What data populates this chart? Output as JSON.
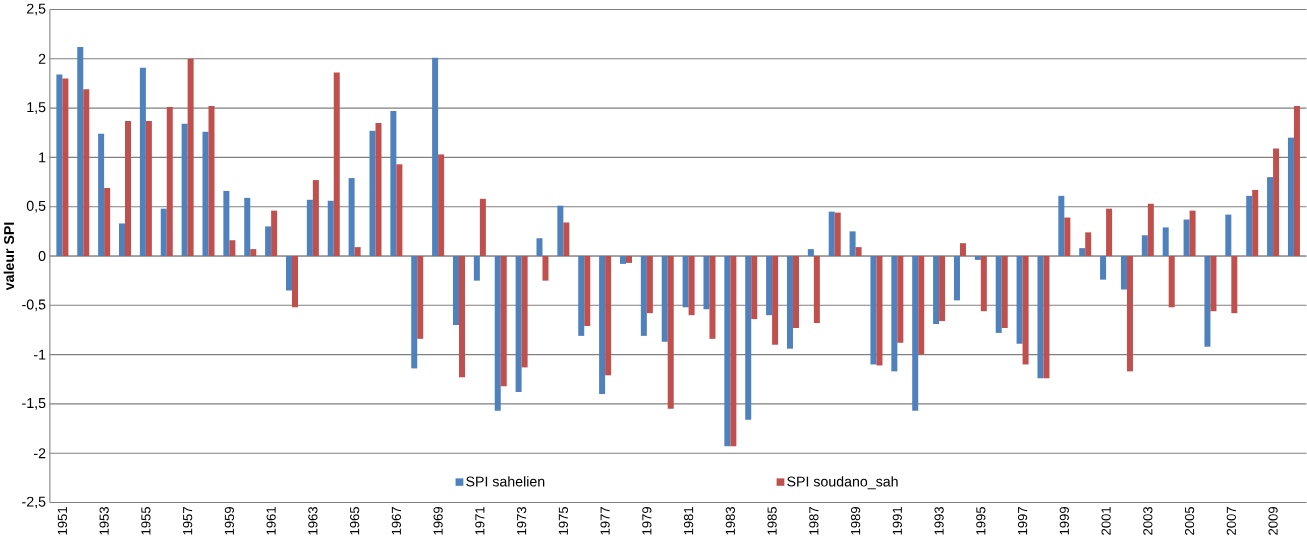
{
  "chart_data": {
    "type": "bar",
    "ylabel": "valeur SPI",
    "categories": [
      "1951",
      null,
      "1953",
      null,
      "1955",
      null,
      "1957",
      null,
      "1959",
      null,
      "1961",
      null,
      "1963",
      null,
      "1965",
      null,
      "1967",
      null,
      "1969",
      null,
      "1971",
      null,
      "1973",
      null,
      "1975",
      null,
      "1977",
      null,
      "1979",
      null,
      "1981",
      null,
      "1983",
      null,
      "1985",
      null,
      "1987",
      null,
      "1989",
      null,
      "1991",
      null,
      "1993",
      null,
      "1995",
      null,
      "1997",
      null,
      "1999",
      null,
      "2001",
      null,
      "2003",
      null,
      "2005",
      null,
      "2007",
      null,
      "2009",
      null
    ],
    "series": [
      {
        "name": "SPI sahelien",
        "color": "#4f81bd",
        "values": [
          1.84,
          2.12,
          1.24,
          0.33,
          1.91,
          0.48,
          1.34,
          1.26,
          0.66,
          0.59,
          0.3,
          -0.35,
          0.57,
          0.56,
          0.79,
          1.27,
          1.47,
          -1.14,
          2.01,
          -0.7,
          -0.25,
          -1.57,
          -1.38,
          0.18,
          0.51,
          -0.81,
          -1.4,
          -0.08,
          -0.81,
          -0.87,
          -0.52,
          -0.54,
          -1.93,
          -1.66,
          -0.6,
          -0.94,
          0.07,
          0.45,
          0.25,
          -1.1,
          -1.17,
          -1.57,
          -0.69,
          -0.45,
          -0.04,
          -0.78,
          -0.89,
          -1.24,
          0.61,
          0.08,
          -0.24,
          -0.34,
          0.21,
          0.29,
          0.37,
          -0.92,
          0.42,
          0.61,
          0.8,
          1.2
        ]
      },
      {
        "name": "SPI soudano_sah",
        "color": "#c0504d",
        "values": [
          1.8,
          1.69,
          0.69,
          1.37,
          1.37,
          1.51,
          2.0,
          1.52,
          0.16,
          0.07,
          0.46,
          -0.52,
          0.77,
          1.86,
          0.09,
          1.35,
          0.93,
          -0.84,
          1.03,
          -1.23,
          0.58,
          -1.32,
          -1.13,
          -0.25,
          0.34,
          -0.71,
          -1.21,
          -0.07,
          -0.58,
          -1.55,
          -0.6,
          -0.84,
          -1.93,
          -0.64,
          -0.9,
          -0.73,
          -0.68,
          0.44,
          0.09,
          -1.11,
          -0.88,
          -1.0,
          -0.66,
          0.13,
          -0.56,
          -0.73,
          -1.1,
          -1.24,
          0.39,
          0.24,
          0.48,
          -1.17,
          0.53,
          -0.52,
          0.46,
          -0.56,
          -0.58,
          0.67,
          1.09,
          1.52
        ]
      }
    ],
    "ylim": [
      -2.5,
      2.5
    ],
    "yticks": [
      {
        "value": -2.5,
        "label": "-2,5"
      },
      {
        "value": -2,
        "label": "-2"
      },
      {
        "value": -1.5,
        "label": "-1,5"
      },
      {
        "value": -1,
        "label": "-1"
      },
      {
        "value": -0.5,
        "label": "-0,5"
      },
      {
        "value": 0,
        "label": "0"
      },
      {
        "value": 0.5,
        "label": "0,5"
      },
      {
        "value": 1,
        "label": "1"
      },
      {
        "value": 1.5,
        "label": "1,5"
      },
      {
        "value": 2,
        "label": "2"
      },
      {
        "value": 2.5,
        "label": "2,5"
      }
    ],
    "grid": "y",
    "legend": "bottom"
  }
}
